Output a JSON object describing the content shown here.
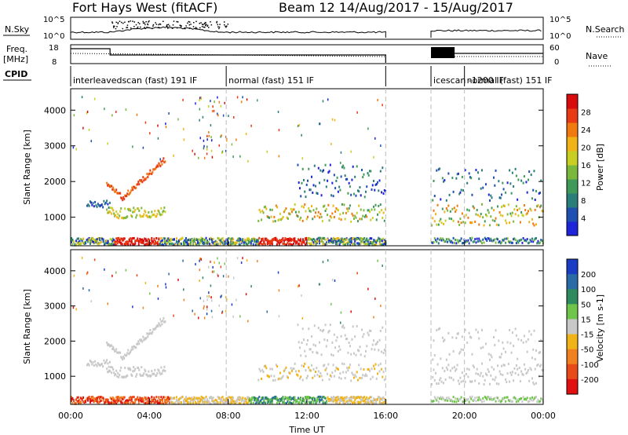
{
  "header": {
    "title": "Fort Hays West (fitACF)",
    "subtitle": "Beam 12 14/Aug/2017 - 15/Aug/2017"
  },
  "top_panels": {
    "nsky_label": "N.Sky",
    "nsearch_label": "N.Search",
    "nsky_ticks": [
      "10^5",
      "10^0"
    ],
    "nsearch_ticks": [
      "10^5",
      "10^0"
    ],
    "freq_label_1": "Freq.",
    "freq_label_2": "[MHz]",
    "freq_ticks": [
      "18",
      "8"
    ],
    "nave_label": "Nave",
    "nave_ticks": [
      "60",
      "0"
    ],
    "cpid_label": "CPID"
  },
  "cpid_segments": [
    {
      "start_hour": 0,
      "end_hour": 7.9,
      "label": "interleavedscan (fast) 191 IF"
    },
    {
      "start_hour": 7.9,
      "end_hour": 16.0,
      "label": "normal (fast) 151 IF"
    },
    {
      "start_hour": 18.3,
      "end_hour": 20.0,
      "label": "icescan -1200 IF"
    },
    {
      "start_hour": 20.0,
      "end_hour": 24.0,
      "label": "normal (fast) 151 IF"
    }
  ],
  "chart_data": [
    {
      "type": "heatmap",
      "name": "power",
      "ylabel": "Slant Range [km]",
      "ylim": [
        200,
        4600
      ],
      "yticks": [
        1000,
        2000,
        3000,
        4000
      ],
      "colorbar_label": "Power [dB]",
      "colorbar_ticks": [
        "4",
        "8",
        "12",
        "16",
        "20",
        "24",
        "28"
      ],
      "colors": [
        "#1e24d8",
        "#1f4fb0",
        "#2a7e7a",
        "#3f9a5a",
        "#7ab83c",
        "#c9cf22",
        "#f0b418",
        "#f07a10",
        "#e83a14",
        "#d80c0c"
      ]
    },
    {
      "type": "heatmap",
      "name": "velocity",
      "ylabel": "Slant Range [km]",
      "ylim": [
        200,
        4600
      ],
      "yticks": [
        1000,
        2000,
        3000,
        4000
      ],
      "colorbar_label": "Velocity [m s-1]",
      "colorbar_ticks": [
        "200",
        "100",
        "50",
        "15",
        "-15",
        "-50",
        "-100",
        "-200"
      ],
      "colors": [
        "#1a3dc4",
        "#2a6aa6",
        "#2f8a5e",
        "#6fc54a",
        "#c8c8c8",
        "#f0b418",
        "#f08020",
        "#e84a18",
        "#e01010"
      ]
    }
  ],
  "xaxis": {
    "label": "Time UT",
    "ticks": [
      "00:00",
      "04:00",
      "08:00",
      "12:00",
      "16:00",
      "20:00",
      "00:00"
    ],
    "range_hours": [
      0,
      24
    ]
  },
  "dashed_lines_hours": [
    7.9,
    16.0,
    18.3,
    20.0
  ]
}
